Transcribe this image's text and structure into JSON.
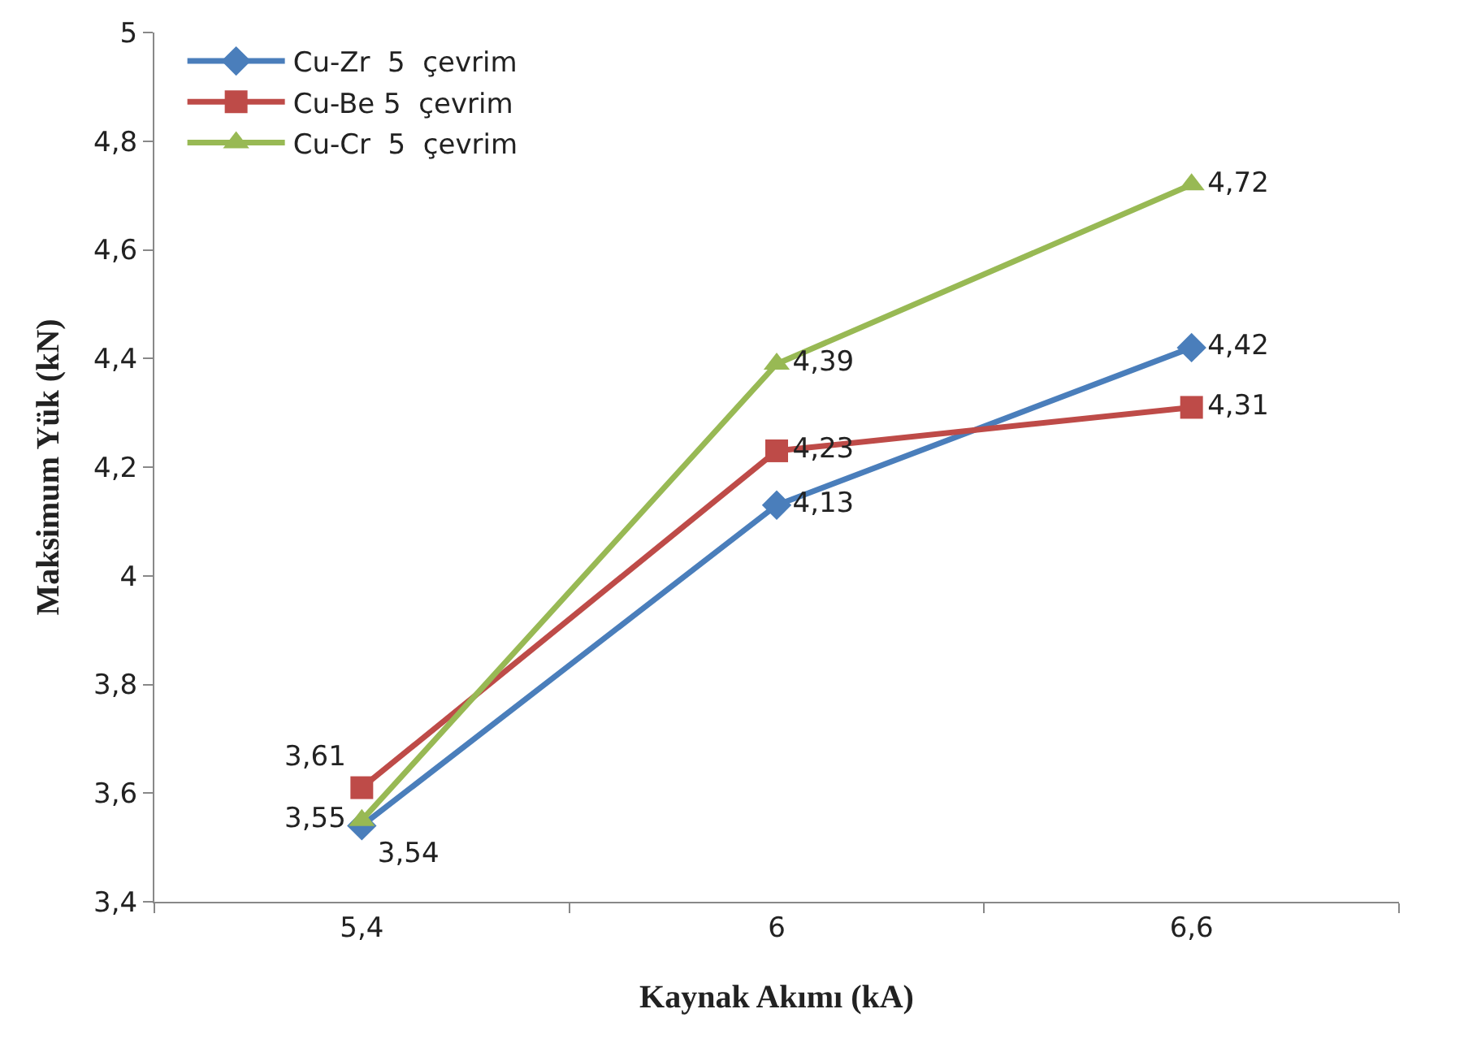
{
  "chart_data": {
    "type": "line",
    "xlabel": "Kaynak Akımı (kA)",
    "ylabel": "Maksimum Yük (kN)",
    "categories": [
      "5,4",
      "6",
      "6,6"
    ],
    "series": [
      {
        "name": "Cu-Zr  5  çevrim",
        "color": "#4a7ebb",
        "marker": "diamond",
        "values": [
          3.54,
          4.13,
          4.42
        ],
        "value_labels": [
          "3,54",
          "4,13",
          "4,42"
        ]
      },
      {
        "name": "Cu-Be 5  çevrim",
        "color": "#be4b48",
        "marker": "square",
        "values": [
          3.61,
          4.23,
          4.31
        ],
        "value_labels": [
          "3,61",
          "4,23",
          "4,31"
        ]
      },
      {
        "name": "Cu-Cr  5  çevrim",
        "color": "#98b954",
        "marker": "triangle",
        "values": [
          3.55,
          4.39,
          4.72
        ],
        "value_labels": [
          "3,55",
          "4,39",
          "4,72"
        ]
      }
    ],
    "ylim": [
      3.4,
      5
    ],
    "yticks": [
      {
        "value": 3.4,
        "label": "3,4"
      },
      {
        "value": 3.6,
        "label": "3,6"
      },
      {
        "value": 3.8,
        "label": "3,8"
      },
      {
        "value": 4,
        "label": "4"
      },
      {
        "value": 4.2,
        "label": "4,2"
      },
      {
        "value": 4.4,
        "label": "4,4"
      },
      {
        "value": 4.6,
        "label": "4,6"
      },
      {
        "value": 4.8,
        "label": "4,8"
      },
      {
        "value": 5,
        "label": "5"
      }
    ],
    "grid": false,
    "legend": "top left",
    "line_style": "solid"
  }
}
